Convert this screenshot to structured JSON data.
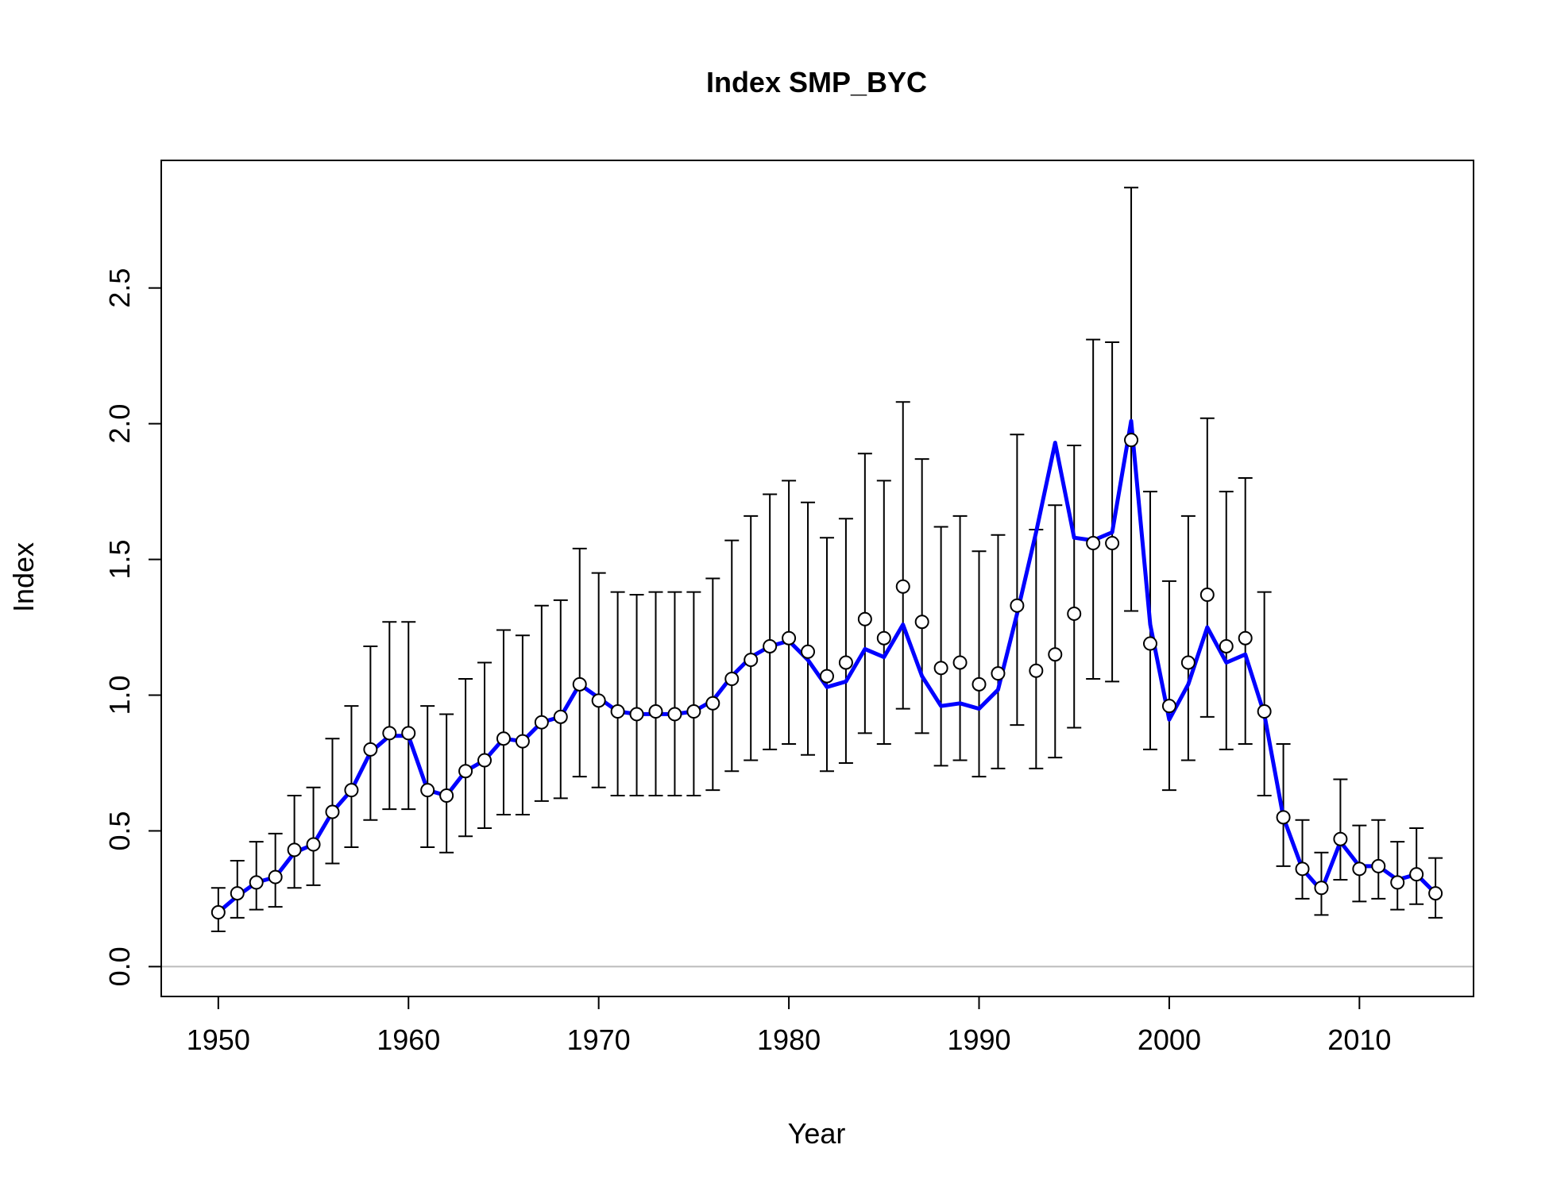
{
  "chart_data": {
    "type": "scatter",
    "title": "Index SMP_BYC",
    "xlabel": "Year",
    "ylabel": "Index",
    "xlim": [
      1947,
      2016
    ],
    "ylim": [
      -0.11,
      2.97
    ],
    "xticks": [
      1950,
      1960,
      1970,
      1980,
      1990,
      2000,
      2010
    ],
    "xtick_labels": [
      "1950",
      "1960",
      "1970",
      "1980",
      "1990",
      "2000",
      "2010"
    ],
    "yticks": [
      0.0,
      0.5,
      1.0,
      1.5,
      2.0,
      2.5
    ],
    "ytick_labels": [
      "0.0",
      "0.5",
      "1.0",
      "1.5",
      "2.0",
      "2.5"
    ],
    "reference_line": 0,
    "grid": false,
    "colors": {
      "observed": "#000000",
      "expected": "#0000ff",
      "reference": "#bbbbbb"
    },
    "years": [
      1950,
      1951,
      1952,
      1953,
      1954,
      1955,
      1956,
      1957,
      1958,
      1959,
      1960,
      1961,
      1962,
      1963,
      1964,
      1965,
      1966,
      1967,
      1968,
      1969,
      1970,
      1971,
      1972,
      1973,
      1974,
      1975,
      1976,
      1977,
      1978,
      1979,
      1980,
      1981,
      1982,
      1983,
      1984,
      1985,
      1986,
      1987,
      1988,
      1989,
      1990,
      1991,
      1992,
      1993,
      1994,
      1995,
      1996,
      1997,
      1998,
      1999,
      2000,
      2001,
      2002,
      2003,
      2004,
      2005,
      2006,
      2007,
      2008,
      2009,
      2010,
      2011,
      2012,
      2013,
      2014
    ],
    "series": [
      {
        "name": "observed",
        "values": [
          0.2,
          0.27,
          0.31,
          0.33,
          0.43,
          0.45,
          0.57,
          0.65,
          0.8,
          0.86,
          0.86,
          0.65,
          0.63,
          0.72,
          0.76,
          0.84,
          0.83,
          0.9,
          0.92,
          1.04,
          0.98,
          0.94,
          0.93,
          0.94,
          0.93,
          0.94,
          0.97,
          1.06,
          1.13,
          1.18,
          1.21,
          1.16,
          1.07,
          1.12,
          1.28,
          1.21,
          1.4,
          1.27,
          1.1,
          1.12,
          1.04,
          1.08,
          1.33,
          1.09,
          1.15,
          1.3,
          1.56,
          1.56,
          1.94,
          1.19,
          0.96,
          1.12,
          1.37,
          1.18,
          1.21,
          0.94,
          0.55,
          0.36,
          0.29,
          0.47,
          0.36,
          0.37,
          0.31,
          0.34,
          0.27
        ],
        "lower": [
          0.13,
          0.18,
          0.21,
          0.22,
          0.29,
          0.3,
          0.38,
          0.44,
          0.54,
          0.58,
          0.58,
          0.44,
          0.42,
          0.48,
          0.51,
          0.56,
          0.56,
          0.61,
          0.62,
          0.7,
          0.66,
          0.63,
          0.63,
          0.63,
          0.63,
          0.63,
          0.65,
          0.72,
          0.76,
          0.8,
          0.82,
          0.78,
          0.72,
          0.75,
          0.86,
          0.82,
          0.95,
          0.86,
          0.74,
          0.76,
          0.7,
          0.73,
          0.89,
          0.73,
          0.77,
          0.88,
          1.06,
          1.05,
          1.31,
          0.8,
          0.65,
          0.76,
          0.92,
          0.8,
          0.82,
          0.63,
          0.37,
          0.25,
          0.19,
          0.32,
          0.24,
          0.25,
          0.21,
          0.23,
          0.18
        ],
        "upper": [
          0.29,
          0.39,
          0.46,
          0.49,
          0.63,
          0.66,
          0.84,
          0.96,
          1.18,
          1.27,
          1.27,
          0.96,
          0.93,
          1.06,
          1.12,
          1.24,
          1.22,
          1.33,
          1.35,
          1.54,
          1.45,
          1.38,
          1.37,
          1.38,
          1.38,
          1.38,
          1.43,
          1.57,
          1.66,
          1.74,
          1.79,
          1.71,
          1.58,
          1.65,
          1.89,
          1.79,
          2.08,
          1.87,
          1.62,
          1.66,
          1.53,
          1.59,
          1.96,
          1.61,
          1.7,
          1.92,
          2.31,
          2.3,
          2.87,
          1.75,
          1.42,
          1.66,
          2.02,
          1.75,
          1.8,
          1.38,
          0.82,
          0.54,
          0.42,
          0.69,
          0.52,
          0.54,
          0.46,
          0.51,
          0.4
        ]
      },
      {
        "name": "expected",
        "values": [
          0.2,
          0.26,
          0.31,
          0.33,
          0.42,
          0.45,
          0.57,
          0.65,
          0.79,
          0.85,
          0.85,
          0.65,
          0.63,
          0.72,
          0.76,
          0.84,
          0.83,
          0.9,
          0.92,
          1.04,
          0.99,
          0.94,
          0.93,
          0.93,
          0.93,
          0.94,
          0.98,
          1.07,
          1.14,
          1.18,
          1.2,
          1.13,
          1.03,
          1.05,
          1.17,
          1.14,
          1.26,
          1.07,
          0.96,
          0.97,
          0.95,
          1.02,
          1.3,
          1.6,
          1.93,
          1.58,
          1.57,
          1.6,
          2.01,
          1.26,
          0.91,
          1.04,
          1.25,
          1.12,
          1.15,
          0.93,
          0.55,
          0.36,
          0.28,
          0.46,
          0.37,
          0.37,
          0.32,
          0.34,
          0.27
        ]
      }
    ]
  }
}
